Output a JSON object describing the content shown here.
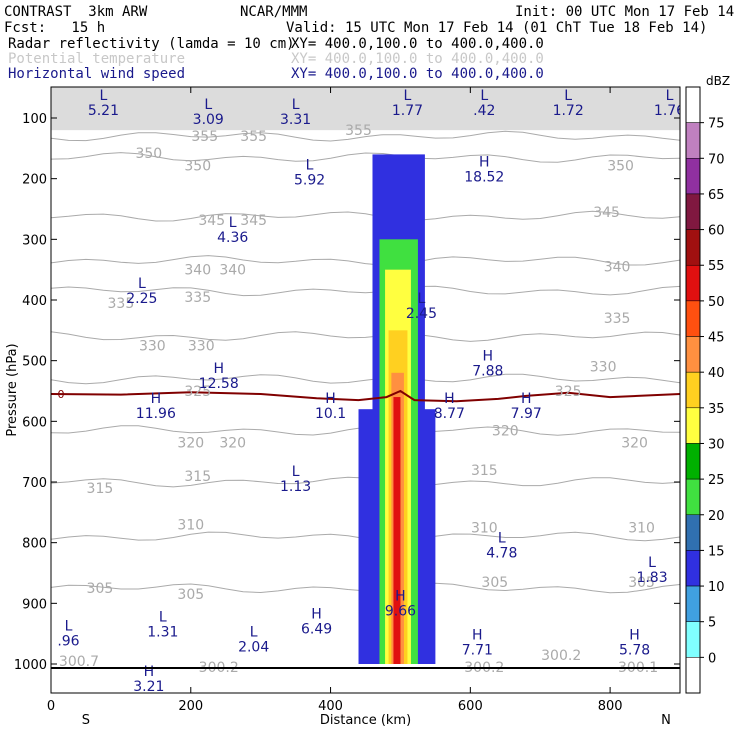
{
  "header": {
    "model": "CONTRAST  3km ARW",
    "org": "NCAR/MMM",
    "init": "Init: 00 UTC Mon 17 Feb 14",
    "fcst": "Fcst:   15 h",
    "valid": "Valid: 15 UTC Mon 17 Feb 14 (01 ChT Tue 18 Feb 14)",
    "field1": "Radar reflectivity (lamda = 10 cm)",
    "field1_xy": "XY= 400.0,100.0 to 400.0,400.0",
    "field2": "Potential temperature",
    "field2_xy": "XY= 400.0,100.0 to 400.0,400.0",
    "field3": "Horizontal wind speed",
    "field3_xy": "XY= 400.0,100.0 to 400.0,400.0"
  },
  "colors": {
    "header_text": "#000000",
    "faded_text": "#c8c8c8",
    "wind_label": "#1a1a8c",
    "theta_contour": "#aaaaaa",
    "freezing_line": "#800000"
  },
  "chart_data": {
    "type": "heatmap",
    "title": "",
    "xlabel": "Distance (km)",
    "ylabel": "Pressure (hPa)",
    "xlim": [
      0,
      900
    ],
    "ylim": [
      1000,
      60
    ],
    "x_ticks": [
      "0",
      "200",
      "400",
      "600",
      "800"
    ],
    "y_ticks": [
      "100",
      "200",
      "300",
      "400",
      "500",
      "600",
      "700",
      "800",
      "900",
      "1000"
    ],
    "x_end_labels": [
      "S",
      "N"
    ],
    "colorbar": {
      "label": "dBZ",
      "levels": [
        "75",
        "70",
        "65",
        "60",
        "55",
        "50",
        "45",
        "40",
        "35",
        "30",
        "25",
        "20",
        "15",
        "10",
        "5",
        "0"
      ],
      "colors": [
        "#ffffff",
        "#c080c0",
        "#9030a0",
        "#801840",
        "#a01010",
        "#e01010",
        "#ff5010",
        "#ff9040",
        "#ffd020",
        "#ffff40",
        "#00b000",
        "#40e040",
        "#3070b0",
        "#3030e0",
        "#40a0e0",
        "#80ffff",
        "#ffffff"
      ]
    },
    "reflectivity_columns": [
      {
        "x0": 440,
        "x1": 550,
        "p_top": 580,
        "p_bot": 1000,
        "dbz": 10
      },
      {
        "x0": 460,
        "x1": 535,
        "p_top": 160,
        "p_bot": 1000,
        "dbz": 12
      },
      {
        "x0": 470,
        "x1": 525,
        "p_top": 300,
        "p_bot": 1000,
        "dbz": 20
      },
      {
        "x0": 478,
        "x1": 515,
        "p_top": 350,
        "p_bot": 1000,
        "dbz": 30
      },
      {
        "x0": 483,
        "x1": 510,
        "p_top": 450,
        "p_bot": 1000,
        "dbz": 35
      },
      {
        "x0": 487,
        "x1": 505,
        "p_top": 520,
        "p_bot": 1000,
        "dbz": 40
      },
      {
        "x0": 490,
        "x1": 500,
        "p_top": 560,
        "p_bot": 1000,
        "dbz": 50
      }
    ],
    "freezing_level": {
      "label": "0",
      "points": [
        [
          0,
          555
        ],
        [
          100,
          556
        ],
        [
          200,
          552
        ],
        [
          300,
          555
        ],
        [
          380,
          562
        ],
        [
          440,
          565
        ],
        [
          480,
          560
        ],
        [
          500,
          550
        ],
        [
          520,
          565
        ],
        [
          580,
          567
        ],
        [
          640,
          563
        ],
        [
          680,
          558
        ],
        [
          740,
          553
        ],
        [
          800,
          560
        ],
        [
          900,
          555
        ]
      ]
    },
    "theta_contours": [
      {
        "value": 355,
        "p": 130
      },
      {
        "value": 350,
        "p": 165
      },
      {
        "value": 345,
        "p": 262
      },
      {
        "value": 340,
        "p": 335
      },
      {
        "value": 335,
        "p": 385
      },
      {
        "value": 330,
        "p": 460
      },
      {
        "value": 325,
        "p": 530
      },
      {
        "value": 320,
        "p": 615
      },
      {
        "value": 315,
        "p": 700
      },
      {
        "value": 310,
        "p": 790
      },
      {
        "value": 305,
        "p": 875
      }
    ],
    "theta_labels": [
      {
        "text": "355",
        "x": 220,
        "p": 130
      },
      {
        "text": "355",
        "x": 290,
        "p": 130
      },
      {
        "text": "355",
        "x": 440,
        "p": 120
      },
      {
        "text": "350",
        "x": 140,
        "p": 158
      },
      {
        "text": "350",
        "x": 210,
        "p": 178
      },
      {
        "text": "350",
        "x": 815,
        "p": 178
      },
      {
        "text": "345",
        "x": 230,
        "p": 268
      },
      {
        "text": "345",
        "x": 290,
        "p": 268
      },
      {
        "text": "345",
        "x": 795,
        "p": 255
      },
      {
        "text": "340",
        "x": 210,
        "p": 350
      },
      {
        "text": "340",
        "x": 260,
        "p": 350
      },
      {
        "text": "340",
        "x": 810,
        "p": 345
      },
      {
        "text": "335",
        "x": 100,
        "p": 405
      },
      {
        "text": "335",
        "x": 210,
        "p": 395
      },
      {
        "text": "335",
        "x": 810,
        "p": 430
      },
      {
        "text": "330",
        "x": 145,
        "p": 475
      },
      {
        "text": "330",
        "x": 215,
        "p": 475
      },
      {
        "text": "330",
        "x": 790,
        "p": 510
      },
      {
        "text": "325",
        "x": 210,
        "p": 550
      },
      {
        "text": "325",
        "x": 740,
        "p": 550
      },
      {
        "text": "320",
        "x": 200,
        "p": 635
      },
      {
        "text": "320",
        "x": 260,
        "p": 635
      },
      {
        "text": "320",
        "x": 650,
        "p": 615
      },
      {
        "text": "320",
        "x": 835,
        "p": 635
      },
      {
        "text": "315",
        "x": 70,
        "p": 710
      },
      {
        "text": "315",
        "x": 210,
        "p": 690
      },
      {
        "text": "315",
        "x": 620,
        "p": 680
      },
      {
        "text": "310",
        "x": 200,
        "p": 770
      },
      {
        "text": "310",
        "x": 620,
        "p": 775
      },
      {
        "text": "310",
        "x": 845,
        "p": 775
      },
      {
        "text": "305",
        "x": 70,
        "p": 875
      },
      {
        "text": "305",
        "x": 200,
        "p": 885
      },
      {
        "text": "305",
        "x": 635,
        "p": 865
      },
      {
        "text": "305",
        "x": 845,
        "p": 865
      },
      {
        "text": "300.7",
        "x": 40,
        "p": 995
      },
      {
        "text": "300.2",
        "x": 240,
        "p": 1005
      },
      {
        "text": "300.2",
        "x": 620,
        "p": 1005
      },
      {
        "text": "300.2",
        "x": 730,
        "p": 985
      },
      {
        "text": "300.1",
        "x": 840,
        "p": 1005
      }
    ],
    "wind_extrema": [
      {
        "type": "L",
        "value": "5.21",
        "x": 75,
        "p": 70
      },
      {
        "type": "L",
        "value": "3.09",
        "x": 225,
        "p": 85
      },
      {
        "type": "L",
        "value": "3.31",
        "x": 350,
        "p": 85
      },
      {
        "type": "L",
        "value": "1.77",
        "x": 510,
        "p": 70
      },
      {
        "type": "L",
        "value": ".42",
        "x": 620,
        "p": 70
      },
      {
        "type": "L",
        "value": "1.72",
        "x": 740,
        "p": 70
      },
      {
        "type": "L",
        "value": "1.76",
        "x": 885,
        "p": 70
      },
      {
        "type": "L",
        "value": "5.92",
        "x": 370,
        "p": 185
      },
      {
        "type": "L",
        "value": "4.36",
        "x": 260,
        "p": 280
      },
      {
        "type": "L",
        "value": "2.25",
        "x": 130,
        "p": 380
      },
      {
        "type": "L",
        "value": "2.45",
        "x": 530,
        "p": 405
      },
      {
        "type": "L",
        "value": "1.13",
        "x": 350,
        "p": 690
      },
      {
        "type": "L",
        "value": "4.78",
        "x": 645,
        "p": 800
      },
      {
        "type": "L",
        "value": "1.83",
        "x": 860,
        "p": 840
      },
      {
        "type": "L",
        "value": "1.31",
        "x": 160,
        "p": 930
      },
      {
        "type": "L",
        "value": ".96",
        "x": 25,
        "p": 945
      },
      {
        "type": "L",
        "value": "2.04",
        "x": 290,
        "p": 955
      },
      {
        "type": "H",
        "value": "18.52",
        "x": 620,
        "p": 180
      },
      {
        "type": "H",
        "value": "7.88",
        "x": 625,
        "p": 500
      },
      {
        "type": "H",
        "value": "12.58",
        "x": 240,
        "p": 520
      },
      {
        "type": "H",
        "value": "11.96",
        "x": 150,
        "p": 570
      },
      {
        "type": "H",
        "value": "10.1",
        "x": 400,
        "p": 570
      },
      {
        "type": "H",
        "value": "8.77",
        "x": 570,
        "p": 570
      },
      {
        "type": "H",
        "value": "7.97",
        "x": 680,
        "p": 570
      },
      {
        "type": "H",
        "value": "9.66",
        "x": 500,
        "p": 895
      },
      {
        "type": "H",
        "value": "6.49",
        "x": 380,
        "p": 925
      },
      {
        "type": "H",
        "value": "7.71",
        "x": 610,
        "p": 960
      },
      {
        "type": "H",
        "value": "5.78",
        "x": 835,
        "p": 960
      },
      {
        "type": "H",
        "value": "3.21",
        "x": 140,
        "p": 1020
      }
    ]
  }
}
